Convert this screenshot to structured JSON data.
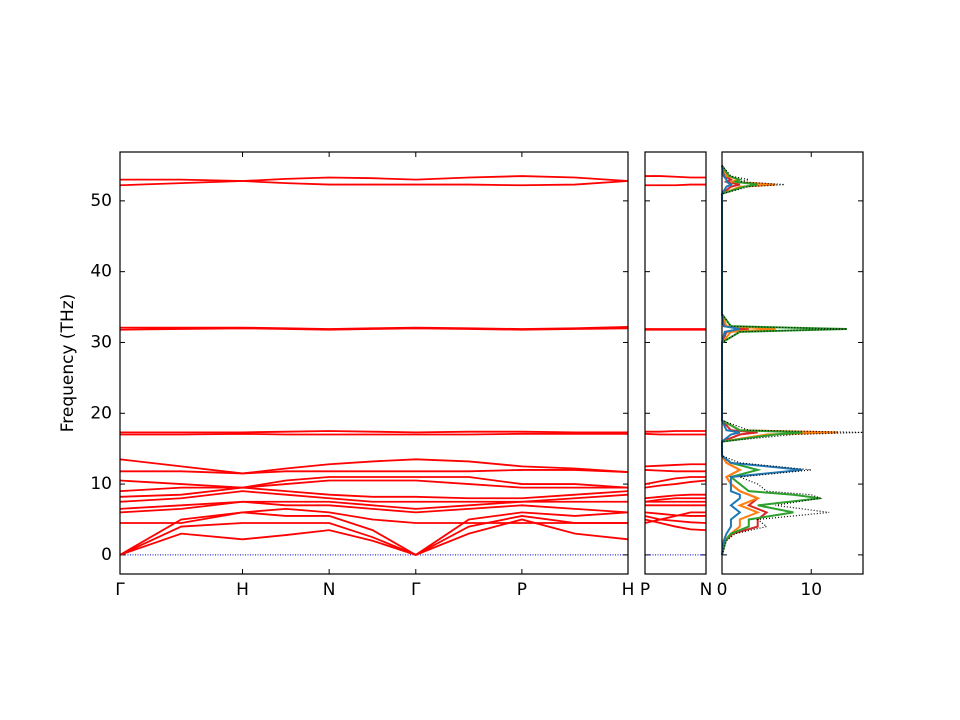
{
  "chart_data": [
    {
      "type": "line",
      "ylabel": "Frequency (THz)",
      "xlim": [
        0,
        4.146
      ],
      "xticks": [
        {
          "value": 0,
          "label": "Γ"
        },
        {
          "value": 1,
          "label": "H"
        },
        {
          "value": 1.707,
          "label": "N"
        },
        {
          "value": 2.414,
          "label": "Γ"
        },
        {
          "value": 3.28,
          "label": "P"
        },
        {
          "value": 4.146,
          "label": "H"
        }
      ],
      "ylim": [
        -2.7,
        56.9
      ],
      "yticks": [
        0,
        10,
        20,
        30,
        40,
        50
      ],
      "zero_line": {
        "value": 0,
        "color": "#0000cc"
      },
      "color": "#ff0000",
      "x": [
        0,
        0.5,
        1,
        1.354,
        1.707,
        2.061,
        2.414,
        2.847,
        3.28,
        3.713,
        4.146
      ],
      "series": [
        {
          "values": [
            0,
            3.0,
            2.2,
            2.8,
            3.5,
            2.0,
            0,
            3.0,
            5.0,
            3.0,
            2.2
          ]
        },
        {
          "values": [
            0,
            4.0,
            4.5,
            4.5,
            4.5,
            2.5,
            0,
            4.0,
            5.5,
            4.5,
            4.5
          ]
        },
        {
          "values": [
            0,
            5.0,
            6.0,
            5.5,
            5.5,
            3.5,
            0,
            5.0,
            6.0,
            5.5,
            6.0
          ]
        },
        {
          "values": [
            4.5,
            4.5,
            6.0,
            6.5,
            6.0,
            5.0,
            4.5,
            4.5,
            4.5,
            4.5,
            4.5
          ]
        },
        {
          "values": [
            6.0,
            6.5,
            7.5,
            7.0,
            7.0,
            6.5,
            6.0,
            6.5,
            7.0,
            6.5,
            6.0
          ]
        },
        {
          "values": [
            6.5,
            7.0,
            7.5,
            7.5,
            7.5,
            7.0,
            6.5,
            7.0,
            7.5,
            7.5,
            7.5
          ]
        },
        {
          "values": [
            7.5,
            8.0,
            9.0,
            8.5,
            8.0,
            7.5,
            7.5,
            7.5,
            7.5,
            8.0,
            8.5
          ]
        },
        {
          "values": [
            8.2,
            8.5,
            9.5,
            9.0,
            8.5,
            8.2,
            8.2,
            8.0,
            8.0,
            8.5,
            9.0
          ]
        },
        {
          "values": [
            9.0,
            9.5,
            9.5,
            10.0,
            10.5,
            10.5,
            10.5,
            10.0,
            9.5,
            9.5,
            9.5
          ]
        },
        {
          "values": [
            10.5,
            10.0,
            9.5,
            10.5,
            11.0,
            11.0,
            11.0,
            11.0,
            10.0,
            10.0,
            9.5
          ]
        },
        {
          "values": [
            11.8,
            11.8,
            11.5,
            11.8,
            11.8,
            11.8,
            11.8,
            11.8,
            12.0,
            12.0,
            11.7
          ]
        },
        {
          "values": [
            13.5,
            12.5,
            11.5,
            12.2,
            12.8,
            13.2,
            13.5,
            13.2,
            12.5,
            12.2,
            11.7
          ]
        },
        {
          "values": [
            17.0,
            17.0,
            17.1,
            17.0,
            17.0,
            17.0,
            17.0,
            17.0,
            17.1,
            17.1,
            17.1
          ]
        },
        {
          "values": [
            17.3,
            17.3,
            17.3,
            17.4,
            17.5,
            17.4,
            17.3,
            17.4,
            17.4,
            17.3,
            17.3
          ]
        },
        {
          "values": [
            31.8,
            31.9,
            32.0,
            31.9,
            31.8,
            31.9,
            32.0,
            31.9,
            31.8,
            31.9,
            32.0
          ]
        },
        {
          "values": [
            32.1,
            32.1,
            32.1,
            32.0,
            31.9,
            32.0,
            32.1,
            32.0,
            31.9,
            32.0,
            32.2
          ]
        },
        {
          "values": [
            52.2,
            52.5,
            52.8,
            52.5,
            52.3,
            52.3,
            52.3,
            52.3,
            52.2,
            52.3,
            52.8
          ]
        },
        {
          "values": [
            53.0,
            53.0,
            52.8,
            53.1,
            53.3,
            53.2,
            53.0,
            53.3,
            53.5,
            53.3,
            52.8
          ]
        }
      ]
    },
    {
      "type": "line",
      "xlim": [
        0,
        0.5
      ],
      "xticks": [
        {
          "value": 0,
          "label": "P"
        },
        {
          "value": 0.5,
          "label": "N"
        }
      ],
      "ylim": [
        -2.7,
        56.9
      ],
      "yticks": [
        0,
        10,
        20,
        30,
        40,
        50
      ],
      "zero_line": {
        "value": 0,
        "color": "#0000cc"
      },
      "color": "#ff0000",
      "x": [
        0,
        0.125,
        0.25,
        0.375,
        0.5
      ],
      "series": [
        {
          "values": [
            5.0,
            4.5,
            4.0,
            3.6,
            3.5
          ]
        },
        {
          "values": [
            5.5,
            5.0,
            4.8,
            4.6,
            4.5
          ]
        },
        {
          "values": [
            6.0,
            5.8,
            5.6,
            5.5,
            5.5
          ]
        },
        {
          "values": [
            4.5,
            5.0,
            5.5,
            6.0,
            6.0
          ]
        },
        {
          "values": [
            7.0,
            7.0,
            7.0,
            7.0,
            7.0
          ]
        },
        {
          "values": [
            7.5,
            7.5,
            7.5,
            7.5,
            7.5
          ]
        },
        {
          "values": [
            7.5,
            7.8,
            8.0,
            8.0,
            8.0
          ]
        },
        {
          "values": [
            8.0,
            8.2,
            8.4,
            8.5,
            8.5
          ]
        },
        {
          "values": [
            9.5,
            9.8,
            10.0,
            10.3,
            10.5
          ]
        },
        {
          "values": [
            10.0,
            10.4,
            10.8,
            11.0,
            11.0
          ]
        },
        {
          "values": [
            12.0,
            11.9,
            11.8,
            11.8,
            11.8
          ]
        },
        {
          "values": [
            12.5,
            12.6,
            12.7,
            12.8,
            12.8
          ]
        },
        {
          "values": [
            17.1,
            17.0,
            17.0,
            17.0,
            17.0
          ]
        },
        {
          "values": [
            17.4,
            17.4,
            17.5,
            17.5,
            17.5
          ]
        },
        {
          "values": [
            31.8,
            31.8,
            31.8,
            31.8,
            31.8
          ]
        },
        {
          "values": [
            31.9,
            31.9,
            31.9,
            31.9,
            31.9
          ]
        },
        {
          "values": [
            52.2,
            52.2,
            52.2,
            52.3,
            52.3
          ]
        },
        {
          "values": [
            53.5,
            53.5,
            53.4,
            53.3,
            53.3
          ]
        }
      ]
    },
    {
      "type": "dos",
      "xlim": [
        0,
        15.8
      ],
      "xticks": [
        0,
        10
      ],
      "ylim": [
        -2.7,
        56.9
      ],
      "yticks": [
        0,
        10,
        20,
        30,
        40,
        50
      ],
      "frequency": [
        0,
        2,
        3,
        4,
        5,
        6,
        7,
        8,
        8.5,
        9,
        10,
        11,
        12,
        13,
        14,
        16,
        17,
        17.3,
        17.6,
        19,
        30,
        31.5,
        31.9,
        32.3,
        34,
        51,
        52,
        52.3,
        52.7,
        53,
        53.5,
        55
      ],
      "series": [
        {
          "color": "#d62728",
          "values": [
            0,
            0.4,
            1.2,
            4,
            4,
            5,
            3,
            4,
            3,
            2,
            1,
            0.5,
            2,
            0.5,
            0,
            0,
            2,
            4,
            1,
            0,
            0,
            0.5,
            3,
            0.3,
            0,
            0,
            1,
            2,
            0.5,
            1,
            0.3,
            0
          ]
        },
        {
          "color": "#ff7f0e",
          "values": [
            0,
            0.3,
            1,
            2,
            2,
            4,
            2,
            4,
            3,
            2,
            1,
            0.5,
            2,
            0.5,
            0,
            0,
            5,
            13,
            2,
            0,
            0,
            1,
            6,
            0.5,
            0,
            0,
            2,
            6,
            1,
            2,
            0.5,
            0
          ]
        },
        {
          "color": "#2ca02c",
          "values": [
            0,
            0.4,
            1,
            3,
            3,
            8,
            4,
            11,
            8,
            3,
            2,
            1,
            4,
            1,
            0,
            0,
            6,
            9,
            2,
            0,
            0,
            2,
            14,
            1,
            0,
            0,
            2.5,
            4,
            1.5,
            2,
            0.8,
            0
          ]
        },
        {
          "color": "#1f77b4",
          "values": [
            0,
            0.2,
            0.5,
            1,
            1,
            2,
            1,
            2,
            2,
            1,
            1,
            1,
            9,
            1,
            0,
            0,
            1,
            2,
            0.5,
            0,
            0,
            0.3,
            2,
            0.2,
            0,
            0,
            0.5,
            1,
            0.5,
            0.5,
            0.2,
            0
          ]
        },
        {
          "color": "#000000",
          "linestyle": "dotted",
          "values": [
            0,
            0.5,
            1.5,
            5,
            4,
            12,
            6,
            11,
            10,
            5,
            4,
            2,
            10,
            2,
            0,
            0,
            8,
            15.8,
            3,
            0,
            0,
            2,
            14,
            1,
            0,
            0,
            3,
            7,
            2,
            3,
            1,
            0
          ]
        }
      ]
    }
  ]
}
